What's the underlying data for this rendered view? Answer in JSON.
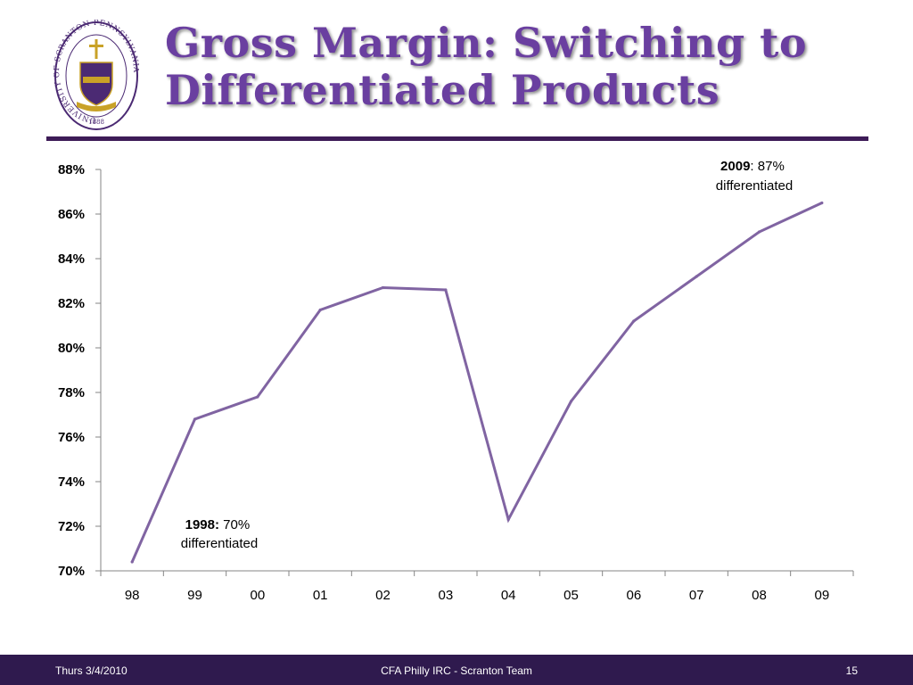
{
  "slide": {
    "title_line1": "Gross Margin: Switching to",
    "title_line2": "Differentiated Products",
    "seal_text": "UNIVERSITY OF SCRANTON PENNSYLVANIA",
    "seal_year": "1888"
  },
  "footer": {
    "date": "Thurs 3/4/2010",
    "center": "CFA Philly IRC - Scranton Team",
    "page": "15"
  },
  "colors": {
    "line": "#8064a2",
    "title": "#6a3fa0",
    "footer_bg": "#2f1a4e",
    "seal": "#4b2a73",
    "seal_gold": "#c9a227"
  },
  "chart_data": {
    "type": "line",
    "categories": [
      "98",
      "99",
      "00",
      "01",
      "02",
      "03",
      "04",
      "05",
      "06",
      "07",
      "08",
      "09"
    ],
    "series": [
      {
        "values": [
          70.4,
          76.8,
          77.8,
          81.7,
          82.7,
          82.6,
          72.3,
          77.6,
          81.2,
          83.2,
          85.2,
          86.5
        ]
      }
    ],
    "y_ticks": [
      "70%",
      "72%",
      "74%",
      "76%",
      "78%",
      "80%",
      "82%",
      "84%",
      "86%",
      "88%"
    ],
    "ylim": [
      70,
      88
    ],
    "grid": false,
    "annotations": [
      {
        "bold": "1998:",
        "text": " 70%",
        "line2": "differentiated"
      },
      {
        "bold": "2009",
        "text": ": 87%",
        "line2": "differentiated"
      }
    ]
  }
}
